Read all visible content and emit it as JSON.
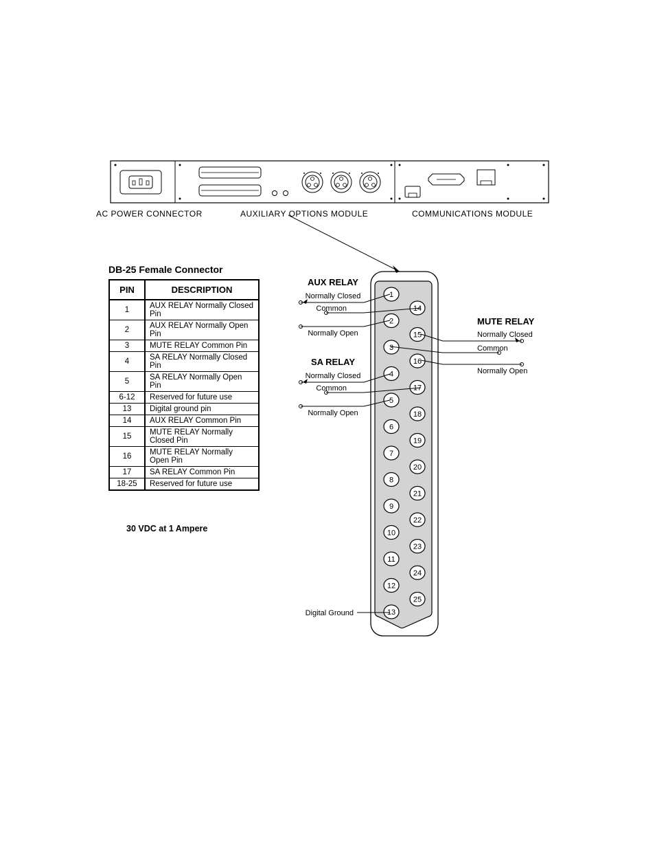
{
  "panel_labels": {
    "ac": "AC POWER CONNECTOR",
    "aux": "AUXILIARY OPTIONS  MODULE",
    "comm": "COMMUNICATIONS MODULE"
  },
  "db25_title": "DB-25 Female Connector",
  "table": {
    "head_pin": "PIN",
    "head_desc": "DESCRIPTION",
    "rows": [
      {
        "pin": "1",
        "desc": "AUX RELAY Normally Closed Pin"
      },
      {
        "pin": "2",
        "desc": "AUX RELAY Normally Open Pin"
      },
      {
        "pin": "3",
        "desc": "MUTE RELAY Common Pin"
      },
      {
        "pin": "4",
        "desc": "SA RELAY Normally Closed Pin"
      },
      {
        "pin": "5",
        "desc": "SA RELAY Normally Open Pin"
      },
      {
        "pin": "6-12",
        "desc": "Reserved for future use"
      },
      {
        "pin": "13",
        "desc": "Digital ground pin"
      },
      {
        "pin": "14",
        "desc": "AUX RELAY Common Pin"
      },
      {
        "pin": "15",
        "desc": "MUTE RELAY Normally Closed Pin"
      },
      {
        "pin": "16",
        "desc": "MUTE RELAY Normally Open Pin"
      },
      {
        "pin": "17",
        "desc": "SA RELAY Common Pin"
      },
      {
        "pin": "18-25",
        "desc": "Reserved for future use"
      }
    ]
  },
  "rating": "30 VDC at 1 Ampere",
  "relays": {
    "aux": {
      "title": "AUX RELAY",
      "nc": "Normally Closed",
      "common": "Common",
      "no": "Normally Open"
    },
    "sa": {
      "title": "SA RELAY",
      "nc": "Normally Closed",
      "common": "Common",
      "no": "Normally Open"
    },
    "mute": {
      "title": "MUTE RELAY",
      "nc": "Normally Closed",
      "common": "Common",
      "no": "Normally Open"
    }
  },
  "digital_ground": "Digital Ground",
  "colors": {
    "stroke": "#000000",
    "fill_grey": "#d3d3d3",
    "bg": "#ffffff"
  }
}
